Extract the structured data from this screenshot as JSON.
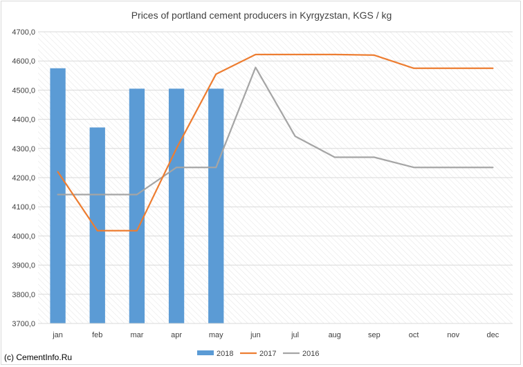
{
  "chart_data": {
    "type": "bar",
    "title": "Prices of portland cement producers in Kyrgyzstan, KGS / kg",
    "categories": [
      "jan",
      "feb",
      "mar",
      "apr",
      "may",
      "jun",
      "jul",
      "aug",
      "sep",
      "oct",
      "nov",
      "dec"
    ],
    "y_ticks": [
      "3700,0",
      "3800,0",
      "3900,0",
      "4000,0",
      "4100,0",
      "4200,0",
      "4300,0",
      "4400,0",
      "4500,0",
      "4600,0",
      "4700,0"
    ],
    "ylim": [
      3700,
      4700
    ],
    "xlabel": "",
    "ylabel": "",
    "grid": true,
    "legend_position": "bottom",
    "series": [
      {
        "name": "2018",
        "kind": "bar",
        "color": "#5b9bd5",
        "values": [
          4575,
          4372,
          4505,
          4505,
          4505,
          null,
          null,
          null,
          null,
          null,
          null,
          null
        ]
      },
      {
        "name": "2017",
        "kind": "line",
        "color": "#ed7d31",
        "values": [
          4220,
          4018,
          4018,
          4300,
          4555,
          4622,
          4622,
          4622,
          4620,
          4575,
          4575,
          4575
        ]
      },
      {
        "name": "2016",
        "kind": "line",
        "color": "#a5a5a5",
        "values": [
          4142,
          4142,
          4142,
          4235,
          4235,
          4578,
          4342,
          4270,
          4270,
          4235,
          4235,
          4235
        ]
      }
    ]
  },
  "credit": "(c) CementInfo.Ru"
}
